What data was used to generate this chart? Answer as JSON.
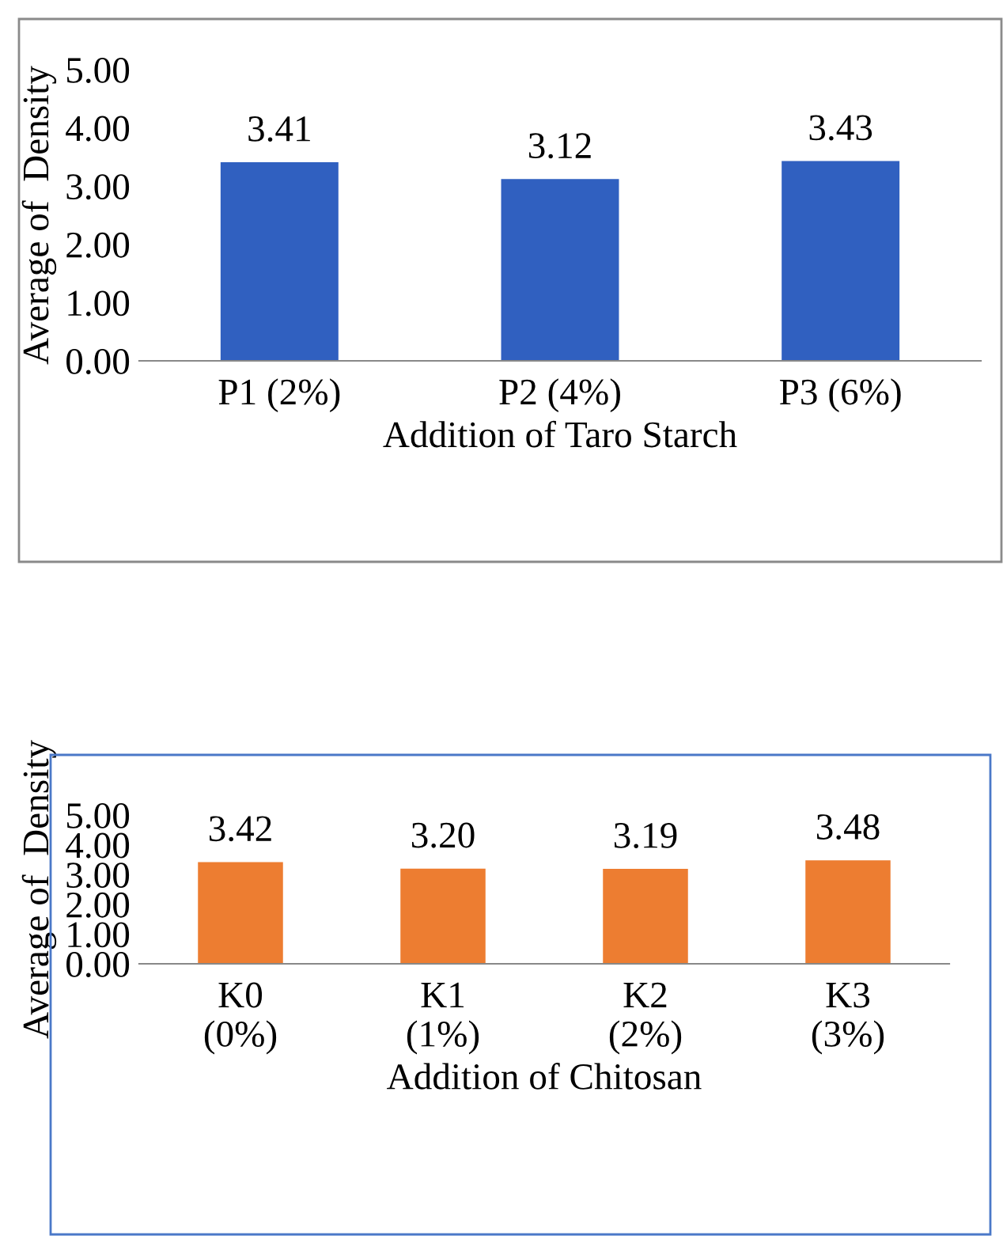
{
  "chart_data": [
    {
      "type": "bar",
      "ylabel": "Average of  Density",
      "xlabel": "Addition of Taro Starch",
      "categories": [
        "P1 (2%)",
        "P2 (4%)",
        "P3 (6%)"
      ],
      "values": [
        3.41,
        3.12,
        3.43
      ],
      "color": "#3060c0",
      "ylim": [
        0,
        5
      ],
      "yticks": [
        {
          "value": 0,
          "label": "0.00"
        },
        {
          "value": 1,
          "label": "1.00"
        },
        {
          "value": 2,
          "label": "2.00"
        },
        {
          "value": 3,
          "label": "3.00"
        },
        {
          "value": 4,
          "label": "4.00"
        },
        {
          "value": 5,
          "label": "5.00"
        }
      ],
      "value_labels": [
        "3.41",
        "3.12",
        "3.43"
      ],
      "grid": false,
      "legend": false
    },
    {
      "type": "bar",
      "ylabel": "Average of  Density",
      "xlabel": "Addition of Chitosan",
      "categories": [
        "K0\n(0%)",
        "K1\n(1%)",
        "K2\n(2%)",
        "K3\n(3%)"
      ],
      "values": [
        3.42,
        3.2,
        3.19,
        3.48
      ],
      "color": "#ed7d31",
      "ylim": [
        0,
        5
      ],
      "yticks": [
        {
          "value": 0,
          "label": "0.00"
        },
        {
          "value": 1,
          "label": "1.00"
        },
        {
          "value": 2,
          "label": "2.00"
        },
        {
          "value": 3,
          "label": "3.00"
        },
        {
          "value": 4,
          "label": "4.00"
        },
        {
          "value": 5,
          "label": "5.00"
        }
      ],
      "value_labels": [
        "3.42",
        "3.20",
        "3.19",
        "3.48"
      ],
      "grid": false,
      "legend": false
    }
  ]
}
